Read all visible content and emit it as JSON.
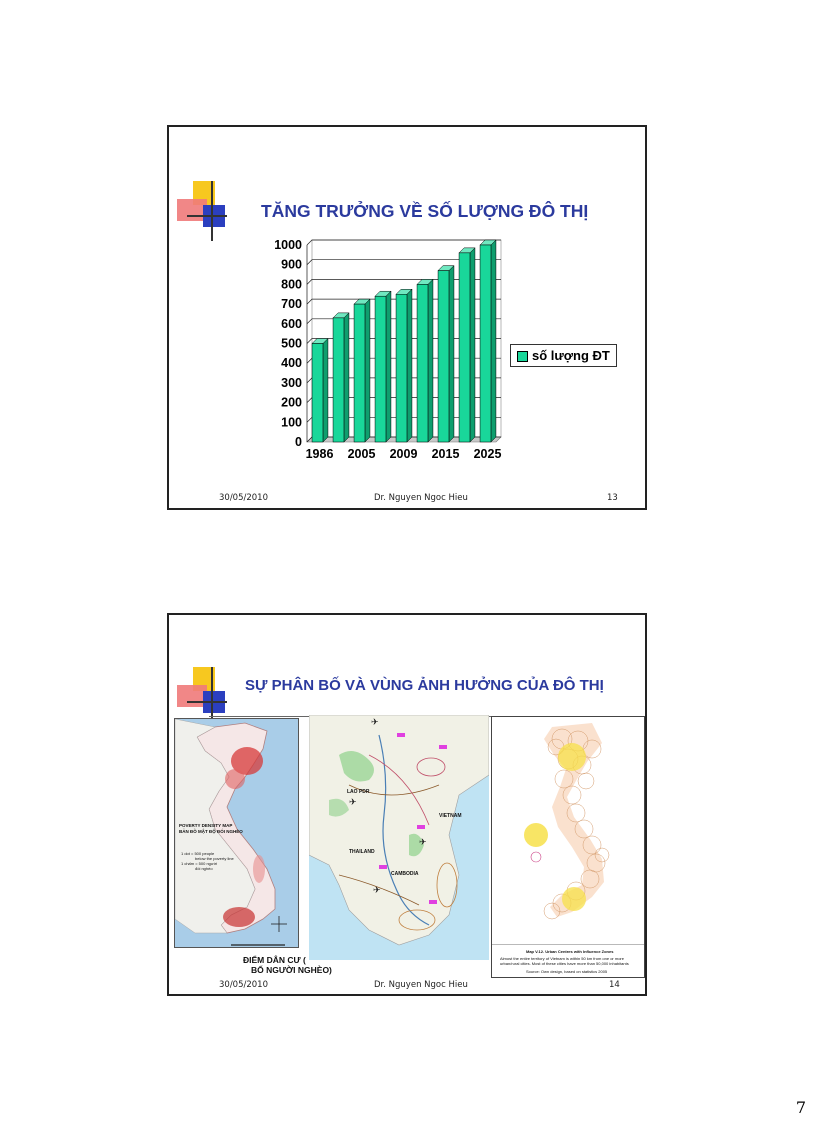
{
  "slide1": {
    "title": "TĂNG TRƯỞNG VỀ SỐ LƯỢNG ĐÔ THỊ",
    "footer_date": "30/05/2010",
    "footer_author": "Dr. Nguyen Ngoc Hieu",
    "footer_page": "13",
    "legend_label": "số lượng ĐT"
  },
  "chart_data": {
    "type": "bar",
    "categories": [
      "1986",
      "",
      "2005",
      "",
      "2009",
      "",
      "2015",
      "",
      "2025"
    ],
    "series": [
      {
        "name": "số lượng ĐT",
        "values": [
          500,
          630,
          700,
          740,
          750,
          800,
          870,
          960,
          1000
        ]
      }
    ],
    "y_ticks": [
      "0",
      "100",
      "200",
      "300",
      "400",
      "500",
      "600",
      "700",
      "800",
      "900",
      "1000"
    ],
    "ylim": [
      0,
      1000
    ],
    "grid": true,
    "legend": "right",
    "bar_color": "#19d79a"
  },
  "slide2": {
    "title": "SỰ PHÂN BỐ VÀ VÙNG ẢNH HƯỞNG CỦA ĐÔ THỊ",
    "footer_date": "30/05/2010",
    "footer_author": "Dr. Nguyen Ngoc Hieu",
    "footer_page": "14",
    "map1": {
      "title_line1": "POVERTY DENSITY MAP",
      "title_line2": "BẢN ĐỒ MẬT ĐỘ ĐÓI NGHÈO",
      "legend1a": "1 dot = 500 people",
      "legend1b": "below the poverty line",
      "legend2a": "1 chấm = 500 người",
      "legend2b": "đói nghèo"
    },
    "map2": {
      "label_lao": "LAO PDR",
      "label_vietnam": "VIETNAM",
      "label_thailand": "THAILAND",
      "label_cambodia": "CAMBODIA"
    },
    "map3": {
      "caption_line1": "Map V.12. Urban Centres with Influence Zones",
      "caption_line2": "Almost the entire territory of Vietnam is within 50 km from one or more",
      "caption_line3": "urban/rural cities. Most of these cities have more than 50,000 inhabitants",
      "caption_line4": "Source: Own design, based on statistics 2005"
    },
    "caption_line1": "ĐIỂM DÂN CƯ (",
    "caption_line2": "BỐ NGƯỜI NGHÈO)"
  },
  "page_number": "7"
}
